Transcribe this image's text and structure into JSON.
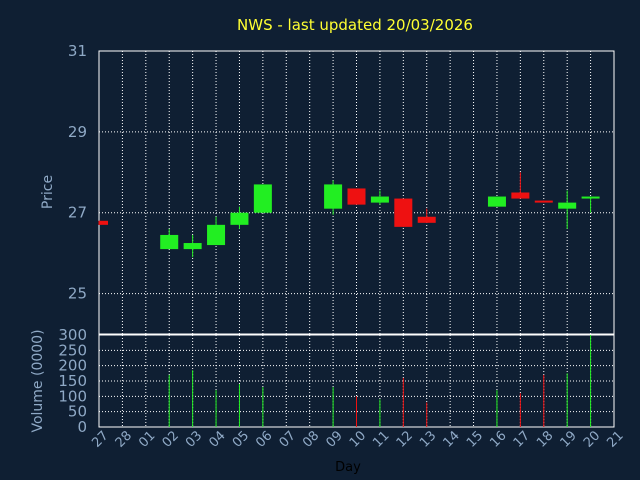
{
  "chart_data": {
    "type": "candlestick",
    "title": "NWS - last updated 20/03/2026",
    "ylabel": "Price",
    "volume_label": "Volume (0000)",
    "xlabel": "Day",
    "x_ticks": [
      "27",
      "28",
      "01",
      "02",
      "03",
      "04",
      "05",
      "06",
      "07",
      "08",
      "09",
      "10",
      "11",
      "12",
      "13",
      "14",
      "15",
      "16",
      "17",
      "18",
      "19",
      "20",
      "21"
    ],
    "price_ylim": [
      24,
      31
    ],
    "price_yticks": [
      "25",
      "27",
      "29",
      "31"
    ],
    "volume_ylim": [
      0,
      300
    ],
    "volume_yticks": [
      "0",
      "50",
      "100",
      "150",
      "200",
      "250",
      "300"
    ],
    "grid": true,
    "colors": {
      "up": "#22ee22",
      "down": "#ee1111",
      "text": "#8fa9c6",
      "title": "#ffff33",
      "background": "#0f1f33"
    },
    "candles": [
      {
        "day": "27",
        "open": 26.8,
        "close": 26.7,
        "high": 26.8,
        "low": 26.7,
        "volume": 0
      },
      {
        "day": "02",
        "open": 26.1,
        "close": 26.45,
        "high": 26.6,
        "low": 26.1,
        "volume": 170
      },
      {
        "day": "03",
        "open": 26.1,
        "close": 26.25,
        "high": 26.45,
        "low": 25.9,
        "volume": 185
      },
      {
        "day": "04",
        "open": 26.2,
        "close": 26.7,
        "high": 26.9,
        "low": 26.2,
        "volume": 120
      },
      {
        "day": "05",
        "open": 26.7,
        "close": 27.0,
        "high": 27.15,
        "low": 26.6,
        "volume": 140
      },
      {
        "day": "06",
        "open": 27.0,
        "close": 27.7,
        "high": 27.7,
        "low": 27.0,
        "volume": 130
      },
      {
        "day": "09",
        "open": 27.1,
        "close": 27.7,
        "high": 27.8,
        "low": 26.95,
        "volume": 130
      },
      {
        "day": "10",
        "open": 27.6,
        "close": 27.2,
        "high": 27.6,
        "low": 27.2,
        "volume": 100
      },
      {
        "day": "11",
        "open": 27.25,
        "close": 27.4,
        "high": 27.55,
        "low": 27.2,
        "volume": 90
      },
      {
        "day": "12",
        "open": 27.35,
        "close": 26.65,
        "high": 27.35,
        "low": 26.65,
        "volume": 160
      },
      {
        "day": "13",
        "open": 26.9,
        "close": 26.75,
        "high": 27.1,
        "low": 26.75,
        "volume": 80
      },
      {
        "day": "16",
        "open": 27.15,
        "close": 27.4,
        "high": 27.4,
        "low": 27.15,
        "volume": 120
      },
      {
        "day": "17",
        "open": 27.5,
        "close": 27.35,
        "high": 28.0,
        "low": 27.35,
        "volume": 110
      },
      {
        "day": "18",
        "open": 27.3,
        "close": 27.25,
        "high": 27.3,
        "low": 27.25,
        "volume": 170
      },
      {
        "day": "19",
        "open": 27.1,
        "close": 27.25,
        "high": 27.55,
        "low": 26.6,
        "volume": 175
      },
      {
        "day": "20",
        "open": 27.35,
        "close": 27.4,
        "high": 27.4,
        "low": 27.0,
        "volume": 300
      }
    ]
  }
}
